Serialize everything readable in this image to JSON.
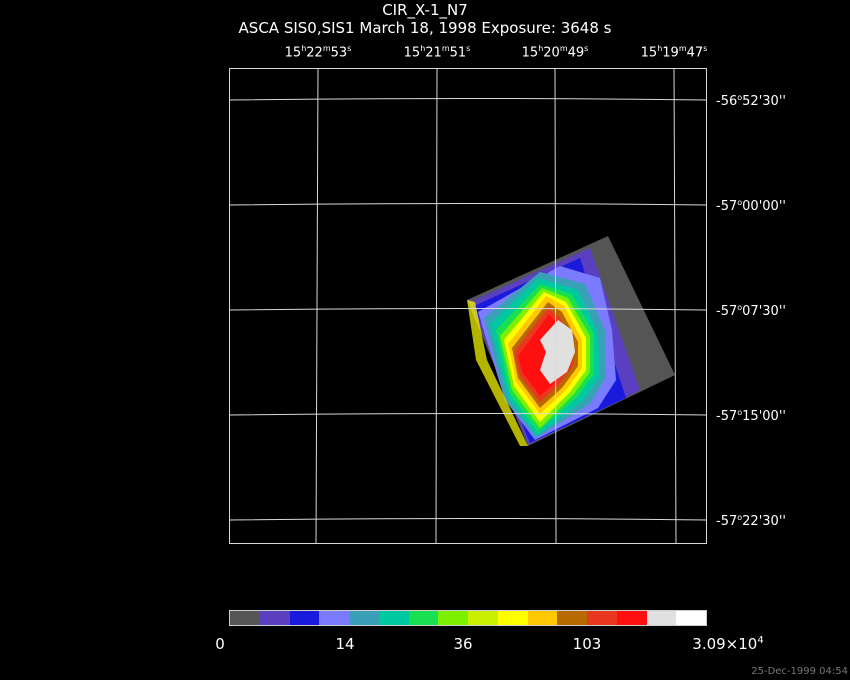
{
  "title": "CIR_X-1_N7",
  "subtitle": "ASCA SIS0,SIS1 March 18, 1998 Exposure: 3648 s",
  "ra_labels": [
    {
      "h": "15",
      "m": "22",
      "s": "53"
    },
    {
      "h": "15",
      "m": "21",
      "s": "51"
    },
    {
      "h": "15",
      "m": "20",
      "s": "49"
    },
    {
      "h": "15",
      "m": "19",
      "s": "47"
    }
  ],
  "dec_labels": [
    {
      "d": "-56",
      "m": "52",
      "s": "30"
    },
    {
      "d": "-57",
      "m": "00",
      "s": "00"
    },
    {
      "d": "-57",
      "m": "07",
      "s": "30"
    },
    {
      "d": "-57",
      "m": "15",
      "s": "00"
    },
    {
      "d": "-57",
      "m": "22",
      "s": "30"
    }
  ],
  "colorbar": {
    "colors": [
      "#555555",
      "#5a3fc0",
      "#1a1adc",
      "#7b7bff",
      "#3aa0b8",
      "#00c8a0",
      "#18e050",
      "#7cf000",
      "#c8f000",
      "#ffff00",
      "#ffc800",
      "#b86a00",
      "#e83820",
      "#ff1010",
      "#e0e0e0",
      "#ffffff"
    ],
    "labels": [
      "0",
      "14",
      "36",
      "103",
      "3.09×10",
      "4"
    ]
  },
  "timestamp": "25-Dec-1999 04:54"
}
